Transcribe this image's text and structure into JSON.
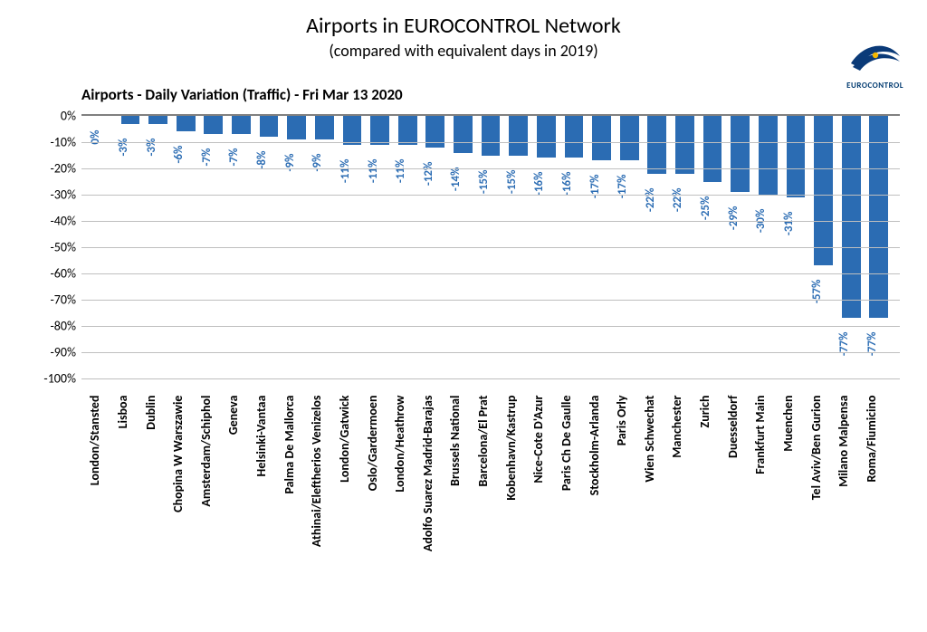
{
  "page": {
    "title": "Airports in EUROCONTROL Network",
    "subtitle": "(compared with equivalent days in 2019)",
    "chart_title": "Airports - Daily Variation (Traffic) - Fri Mar 13 2020"
  },
  "logo": {
    "text": "EUROCONTROL",
    "swoosh_color": "#0a3a78",
    "dot_color": "#f5b800"
  },
  "chart": {
    "type": "bar",
    "ylim": [
      -100,
      0
    ],
    "ytick_step": 10,
    "ytick_suffix": "%",
    "bar_color": "#2b6cb3",
    "value_label_color": "#2b6cb3",
    "grid_color": "#bfbfbf",
    "axis_color": "#808080",
    "background_color": "#ffffff",
    "bar_width_ratio": 0.68,
    "title_fontsize": 17,
    "tick_fontsize": 14,
    "value_fontsize": 13,
    "label_fontsize": 14,
    "categories": [
      "London/Stansted",
      "Lisboa",
      "Dublin",
      "Chopina W Warszawie",
      "Amsterdam/Schiphol",
      "Geneva",
      "Helsinki-Vantaa",
      "Palma De Mallorca",
      "Athinai/Eleftherios Venizelos",
      "London/Gatwick",
      "Oslo/Gardermoen",
      "London/Heathrow",
      "Adolfo Suarez Madrid-Barajas",
      "Brussels National",
      "Barcelona/El Prat",
      "Kobenhavn/Kastrup",
      "Nice-Cote D'Azur",
      "Paris Ch De Gaulle",
      "Stockholm-Arlanda",
      "Paris Orly",
      "Wien Schwechat",
      "Manchester",
      "Zurich",
      "Duesseldorf",
      "Frankfurt Main",
      "Muenchen",
      "Tel Aviv/Ben Gurion",
      "Milano Malpensa",
      "Roma/Fiumicino"
    ],
    "values": [
      0,
      -3,
      -3,
      -6,
      -7,
      -7,
      -8,
      -9,
      -9,
      -11,
      -11,
      -11,
      -12,
      -14,
      -15,
      -15,
      -16,
      -16,
      -17,
      -17,
      -22,
      -22,
      -25,
      -29,
      -30,
      -31,
      -57,
      -77,
      -77
    ]
  }
}
